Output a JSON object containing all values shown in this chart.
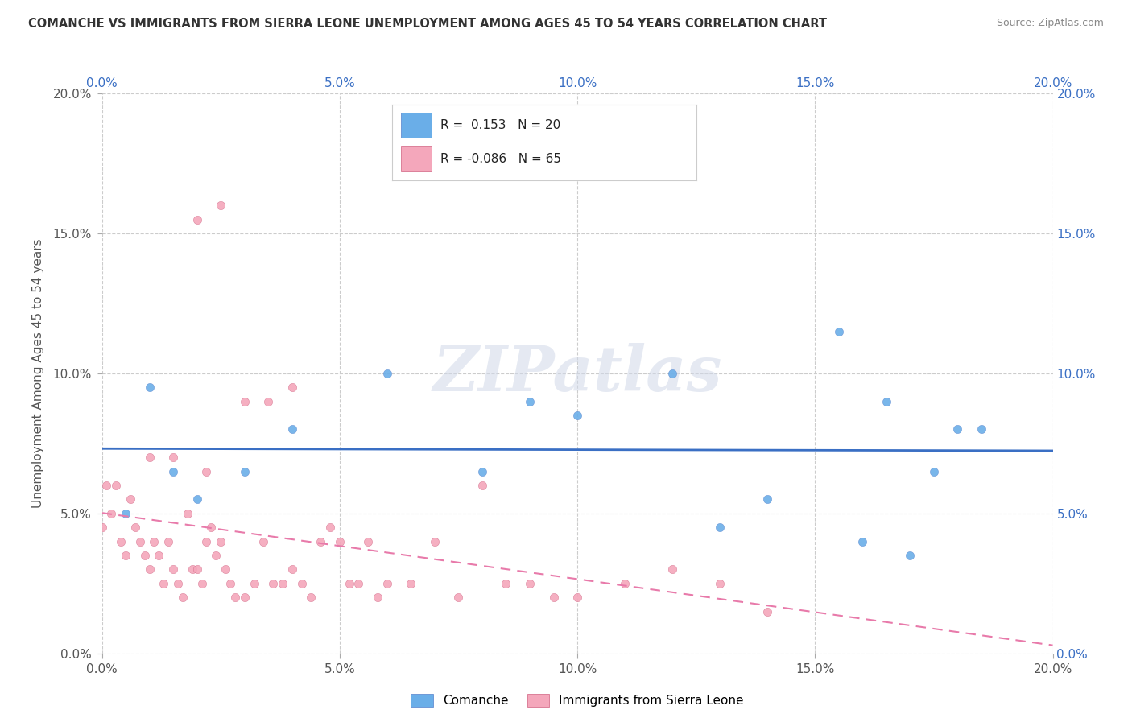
{
  "title": "COMANCHE VS IMMIGRANTS FROM SIERRA LEONE UNEMPLOYMENT AMONG AGES 45 TO 54 YEARS CORRELATION CHART",
  "source": "Source: ZipAtlas.com",
  "ylabel": "Unemployment Among Ages 45 to 54 years",
  "legend_labels": [
    "Comanche",
    "Immigrants from Sierra Leone"
  ],
  "comanche_R": 0.153,
  "comanche_N": 20,
  "sierraleone_R": -0.086,
  "sierraleone_N": 65,
  "xlim": [
    0.0,
    0.2
  ],
  "ylim": [
    0.0,
    0.2
  ],
  "x_ticks": [
    0.0,
    0.05,
    0.1,
    0.15,
    0.2
  ],
  "y_ticks": [
    0.0,
    0.05,
    0.1,
    0.15,
    0.2
  ],
  "x_tick_labels": [
    "0.0%",
    "5.0%",
    "10.0%",
    "15.0%",
    "20.0%"
  ],
  "y_tick_labels": [
    "0.0%",
    "5.0%",
    "10.0%",
    "15.0%",
    "20.0%"
  ],
  "comanche_color": "#6aaee8",
  "sierraleone_color": "#f4a7bb",
  "comanche_line_color": "#3a6fc4",
  "sierraleone_line_color": "#e87aaa",
  "watermark_text": "ZIPatlas",
  "background_color": "#ffffff",
  "grid_color": "#cccccc",
  "comanche_x": [
    0.005,
    0.01,
    0.015,
    0.02,
    0.03,
    0.04,
    0.06,
    0.08,
    0.09,
    0.1,
    0.12,
    0.13,
    0.14,
    0.155,
    0.16,
    0.165,
    0.17,
    0.175,
    0.18,
    0.185
  ],
  "comanche_y": [
    0.05,
    0.095,
    0.065,
    0.055,
    0.065,
    0.08,
    0.1,
    0.065,
    0.09,
    0.085,
    0.1,
    0.045,
    0.055,
    0.115,
    0.04,
    0.09,
    0.035,
    0.065,
    0.08,
    0.08
  ],
  "sierraleone_x": [
    0.0,
    0.001,
    0.002,
    0.003,
    0.004,
    0.005,
    0.006,
    0.007,
    0.008,
    0.009,
    0.01,
    0.011,
    0.012,
    0.013,
    0.014,
    0.015,
    0.016,
    0.017,
    0.018,
    0.019,
    0.02,
    0.021,
    0.022,
    0.023,
    0.024,
    0.025,
    0.026,
    0.027,
    0.028,
    0.03,
    0.032,
    0.034,
    0.036,
    0.038,
    0.04,
    0.042,
    0.044,
    0.046,
    0.048,
    0.05,
    0.052,
    0.054,
    0.056,
    0.058,
    0.06,
    0.065,
    0.07,
    0.075,
    0.08,
    0.085,
    0.09,
    0.095,
    0.1,
    0.11,
    0.12,
    0.13,
    0.14,
    0.02,
    0.025,
    0.03,
    0.035,
    0.04,
    0.015,
    0.01,
    0.022
  ],
  "sierraleone_y": [
    0.045,
    0.06,
    0.05,
    0.06,
    0.04,
    0.035,
    0.055,
    0.045,
    0.04,
    0.035,
    0.03,
    0.04,
    0.035,
    0.025,
    0.04,
    0.03,
    0.025,
    0.02,
    0.05,
    0.03,
    0.03,
    0.025,
    0.04,
    0.045,
    0.035,
    0.04,
    0.03,
    0.025,
    0.02,
    0.02,
    0.025,
    0.04,
    0.025,
    0.025,
    0.03,
    0.025,
    0.02,
    0.04,
    0.045,
    0.04,
    0.025,
    0.025,
    0.04,
    0.02,
    0.025,
    0.025,
    0.04,
    0.02,
    0.06,
    0.025,
    0.025,
    0.02,
    0.02,
    0.025,
    0.03,
    0.025,
    0.015,
    0.155,
    0.16,
    0.09,
    0.09,
    0.095,
    0.07,
    0.07,
    0.065
  ]
}
